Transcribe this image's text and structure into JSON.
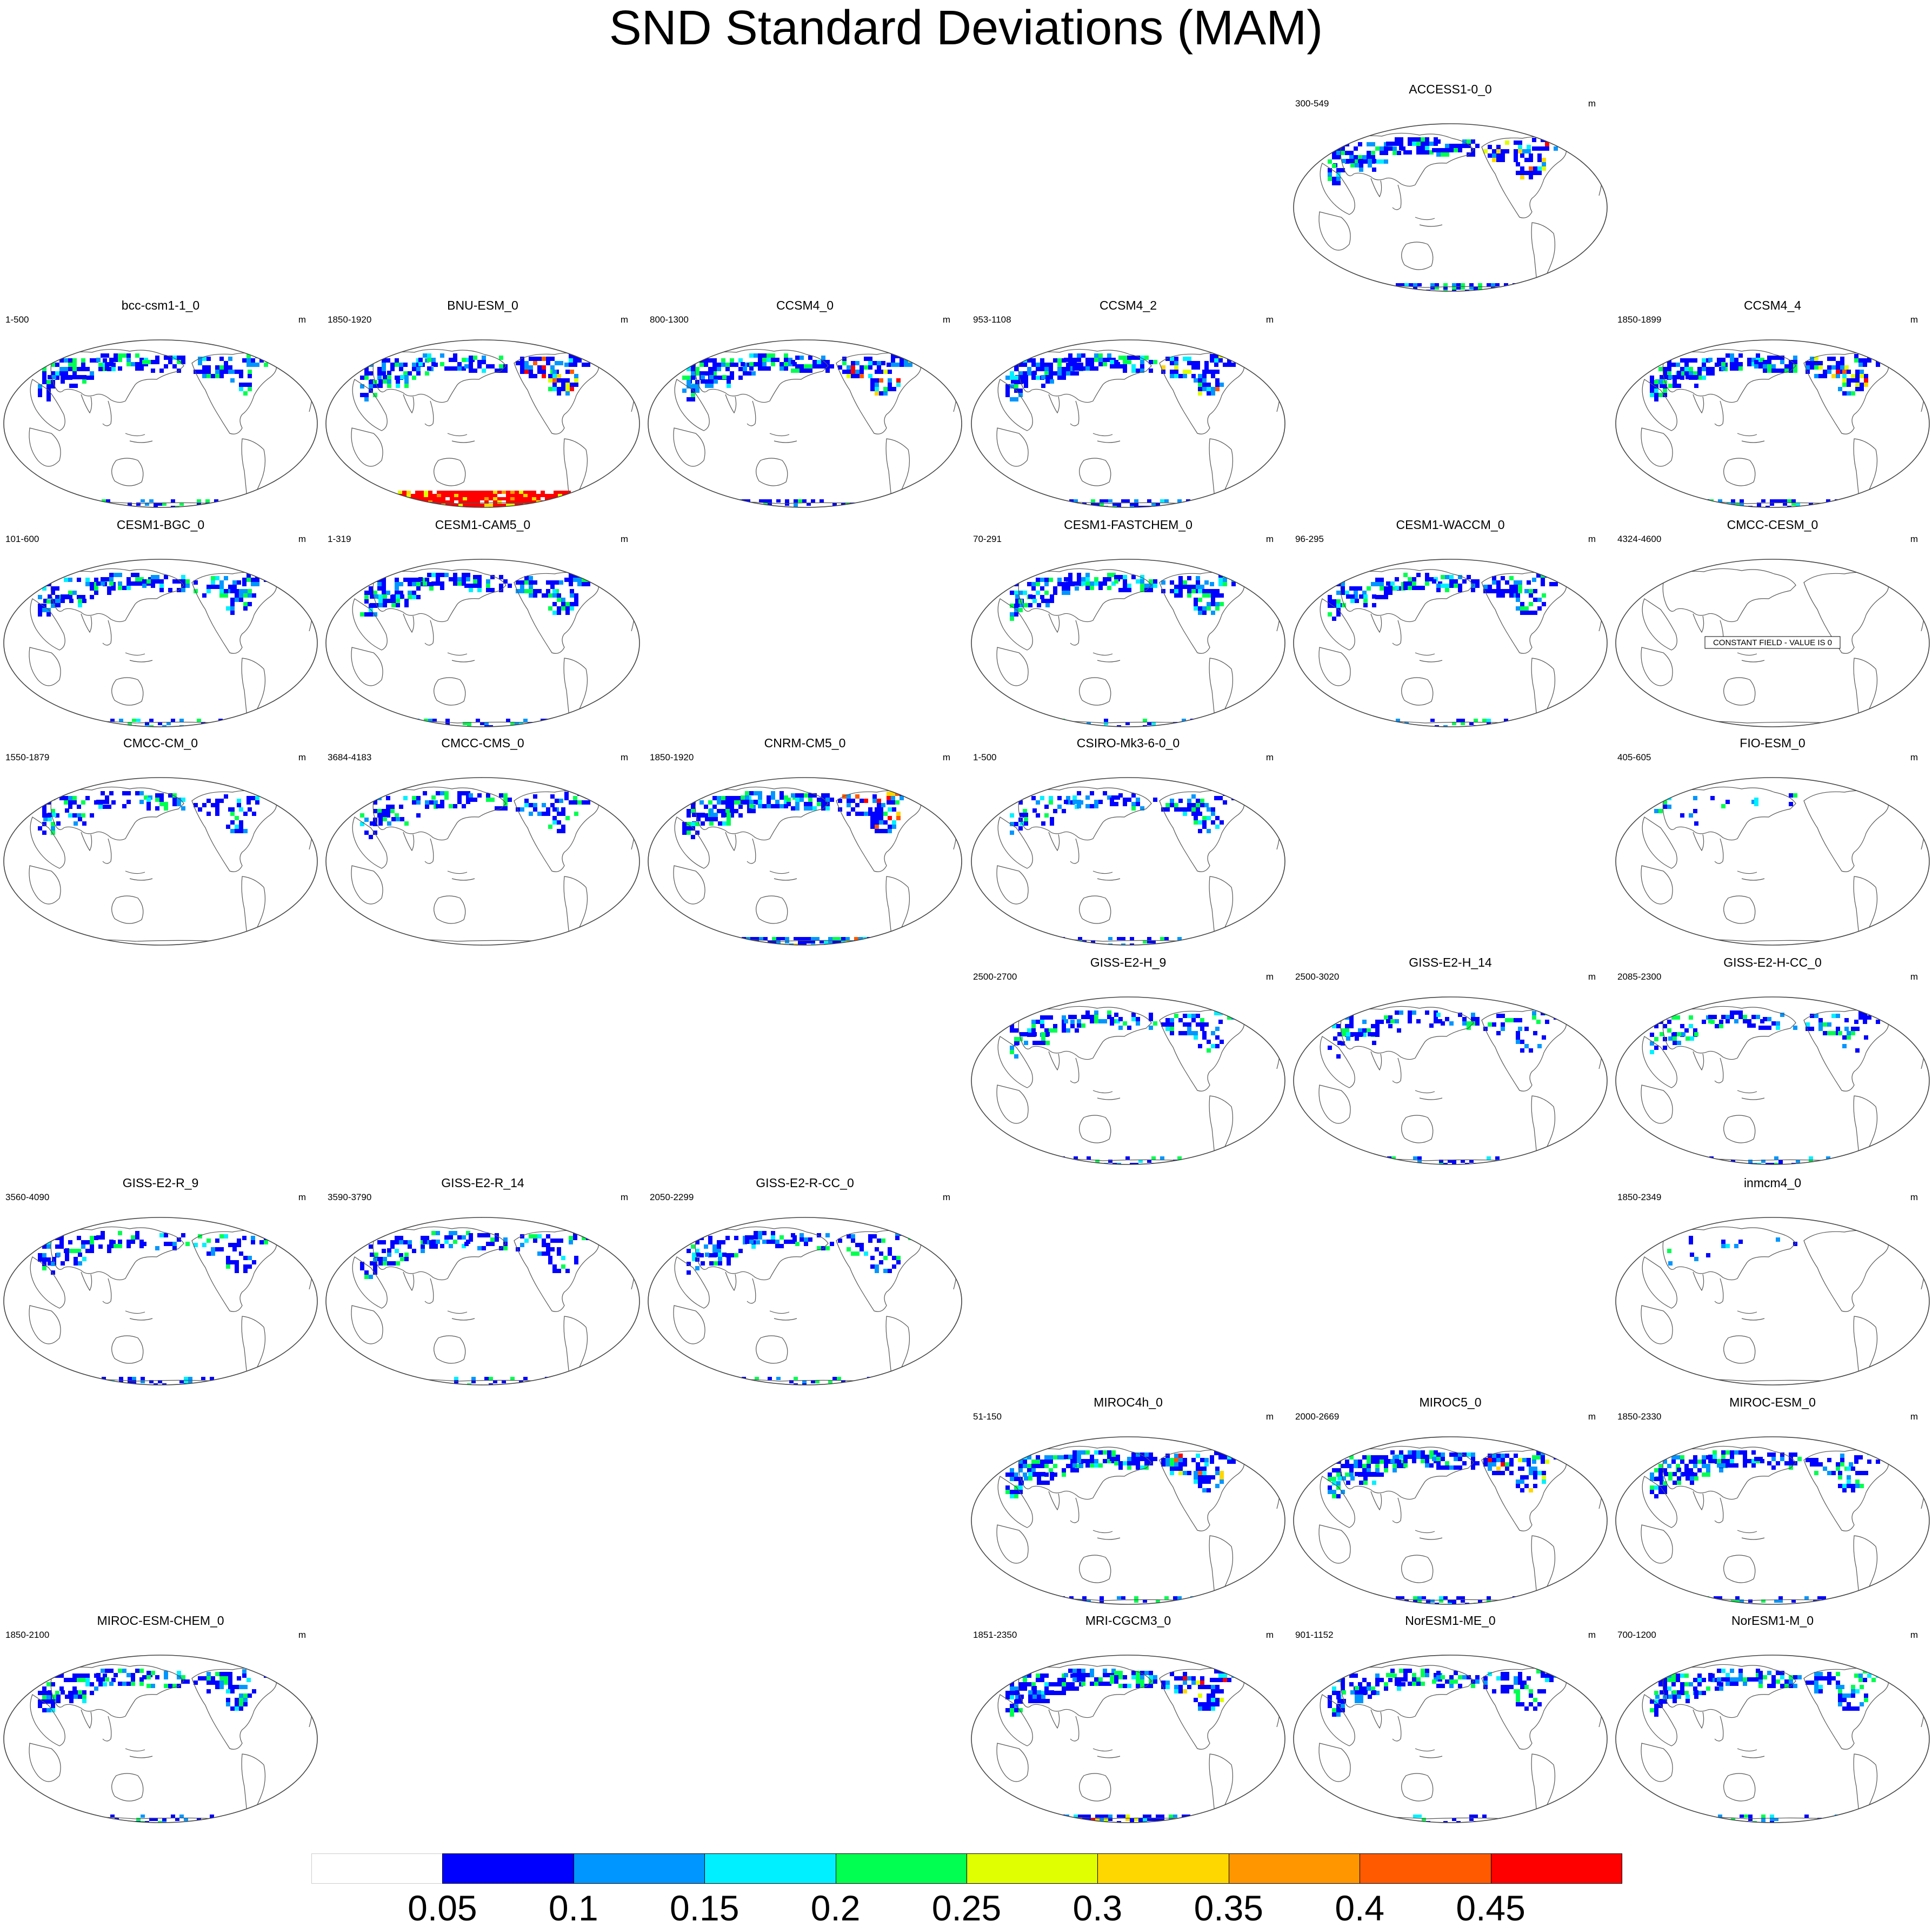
{
  "title": "SND Standard Deviations (MAM)",
  "units_label": "m",
  "colorbar": {
    "colors": [
      "#ffffff",
      "#0000ff",
      "#0096ff",
      "#00f0ff",
      "#00ff50",
      "#e0ff00",
      "#ffd700",
      "#ff9600",
      "#ff5a00",
      "#ff0000"
    ],
    "labels": [
      "0.05",
      "0.1",
      "0.15",
      "0.2",
      "0.25",
      "0.3",
      "0.35",
      "0.4",
      "0.45"
    ]
  },
  "constant_field_text": "CONSTANT FIELD - VALUE IS 0",
  "panels": [
    {
      "name": "ACCESS1-0_0",
      "years": "300-549",
      "row": 0,
      "col": 4,
      "intensity": "high",
      "antarctic": "medium"
    },
    {
      "name": "bcc-csm1-1_0",
      "years": "1-500",
      "row": 1,
      "col": 0,
      "intensity": "medium",
      "antarctic": "low"
    },
    {
      "name": "BNU-ESM_0",
      "years": "1850-1920",
      "row": 1,
      "col": 1,
      "intensity": "high",
      "antarctic": "max"
    },
    {
      "name": "CCSM4_0",
      "years": "800-1300",
      "row": 1,
      "col": 2,
      "intensity": "high",
      "antarctic": "medium"
    },
    {
      "name": "CCSM4_2",
      "years": "953-1108",
      "row": 1,
      "col": 3,
      "intensity": "high",
      "antarctic": "medium"
    },
    {
      "name": "CCSM4_4",
      "years": "1850-1899",
      "row": 1,
      "col": 5,
      "intensity": "high",
      "antarctic": "medium"
    },
    {
      "name": "CESM1-BGC_0",
      "years": "101-600",
      "row": 2,
      "col": 0,
      "intensity": "medium",
      "antarctic": "low"
    },
    {
      "name": "CESM1-CAM5_0",
      "years": "1-319",
      "row": 2,
      "col": 1,
      "intensity": "medium",
      "antarctic": "low"
    },
    {
      "name": "CESM1-FASTCHEM_0",
      "years": "70-291",
      "row": 2,
      "col": 3,
      "intensity": "medium",
      "antarctic": "low"
    },
    {
      "name": "CESM1-WACCM_0",
      "years": "96-295",
      "row": 2,
      "col": 4,
      "intensity": "medium",
      "antarctic": "low"
    },
    {
      "name": "CMCC-CESM_0",
      "years": "4324-4600",
      "row": 2,
      "col": 5,
      "intensity": "none",
      "antarctic": "none",
      "constant": true
    },
    {
      "name": "CMCC-CM_0",
      "years": "1550-1879",
      "row": 3,
      "col": 0,
      "intensity": "low",
      "antarctic": "none"
    },
    {
      "name": "CMCC-CMS_0",
      "years": "3684-4183",
      "row": 3,
      "col": 1,
      "intensity": "low",
      "antarctic": "none"
    },
    {
      "name": "CNRM-CM5_0",
      "years": "1850-1920",
      "row": 3,
      "col": 2,
      "intensity": "high",
      "antarctic": "high"
    },
    {
      "name": "CSIRO-Mk3-6-0_0",
      "years": "1-500",
      "row": 3,
      "col": 3,
      "intensity": "low",
      "antarctic": "low"
    },
    {
      "name": "FIO-ESM_0",
      "years": "405-605",
      "row": 3,
      "col": 5,
      "intensity": "sparse",
      "antarctic": "none"
    },
    {
      "name": "GISS-E2-H_9",
      "years": "2500-2700",
      "row": 4,
      "col": 3,
      "intensity": "low",
      "antarctic": "low"
    },
    {
      "name": "GISS-E2-H_14",
      "years": "2500-3020",
      "row": 4,
      "col": 4,
      "intensity": "low",
      "antarctic": "low"
    },
    {
      "name": "GISS-E2-H-CC_0",
      "years": "2085-2300",
      "row": 4,
      "col": 5,
      "intensity": "low",
      "antarctic": "low"
    },
    {
      "name": "GISS-E2-R_9",
      "years": "3560-4090",
      "row": 5,
      "col": 0,
      "intensity": "low",
      "antarctic": "low"
    },
    {
      "name": "GISS-E2-R_14",
      "years": "3590-3790",
      "row": 5,
      "col": 1,
      "intensity": "low",
      "antarctic": "low"
    },
    {
      "name": "GISS-E2-R-CC_0",
      "years": "2050-2299",
      "row": 5,
      "col": 2,
      "intensity": "low",
      "antarctic": "low"
    },
    {
      "name": "inmcm4_0",
      "years": "1850-2349",
      "row": 5,
      "col": 5,
      "intensity": "sparse",
      "antarctic": "none"
    },
    {
      "name": "MIROC4h_0",
      "years": "51-150",
      "row": 6,
      "col": 3,
      "intensity": "high",
      "antarctic": "low"
    },
    {
      "name": "MIROC5_0",
      "years": "2000-2669",
      "row": 6,
      "col": 4,
      "intensity": "high",
      "antarctic": "medium"
    },
    {
      "name": "MIROC-ESM_0",
      "years": "1850-2330",
      "row": 6,
      "col": 5,
      "intensity": "medium",
      "antarctic": "low"
    },
    {
      "name": "MIROC-ESM-CHEM_0",
      "years": "1850-2100",
      "row": 7,
      "col": 0,
      "intensity": "medium",
      "antarctic": "low"
    },
    {
      "name": "MRI-CGCM3_0",
      "years": "1851-2350",
      "row": 7,
      "col": 3,
      "intensity": "high",
      "antarctic": "high"
    },
    {
      "name": "NorESM1-ME_0",
      "years": "901-1152",
      "row": 7,
      "col": 4,
      "intensity": "medium",
      "antarctic": "low"
    },
    {
      "name": "NorESM1-M_0",
      "years": "700-1200",
      "row": 7,
      "col": 5,
      "intensity": "medium",
      "antarctic": "low"
    }
  ]
}
